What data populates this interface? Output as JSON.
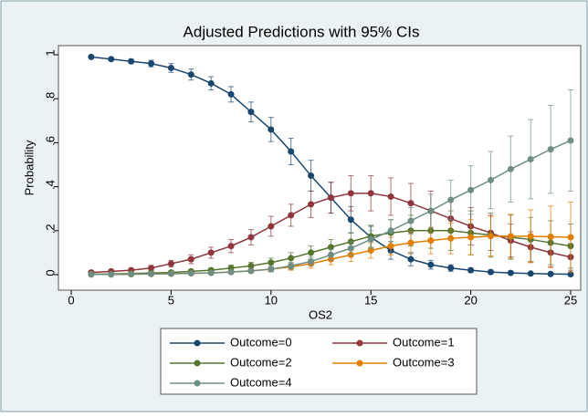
{
  "chart_data": {
    "type": "line",
    "title": "Adjusted Predictions with 95% CIs",
    "x_label": "OS2",
    "y_label": "Probability",
    "x": [
      1,
      2,
      3,
      4,
      5,
      6,
      7,
      8,
      9,
      10,
      11,
      12,
      13,
      14,
      15,
      16,
      17,
      18,
      19,
      20,
      21,
      22,
      23,
      24,
      25
    ],
    "xlim": [
      0,
      25
    ],
    "xticks": [
      0,
      5,
      10,
      15,
      20,
      25
    ],
    "ylim": [
      0,
      1
    ],
    "yticks": [
      0,
      {
        "value": 0.2,
        "label": ".2"
      },
      {
        "value": 0.4,
        "label": ".4"
      },
      {
        "value": 0.6,
        "label": ".6"
      },
      {
        "value": 0.8,
        "label": ".8"
      },
      1
    ],
    "grid": false,
    "series": [
      {
        "name": "Outcome=0",
        "color": "#1a476f",
        "values": [
          0.99,
          0.98,
          0.97,
          0.96,
          0.94,
          0.91,
          0.87,
          0.82,
          0.74,
          0.66,
          0.56,
          0.45,
          0.35,
          0.25,
          0.17,
          0.11,
          0.07,
          0.045,
          0.03,
          0.02,
          0.012,
          0.008,
          0.005,
          0.003,
          0.002
        ],
        "errors": [
          0.005,
          0.007,
          0.01,
          0.015,
          0.02,
          0.025,
          0.03,
          0.035,
          0.045,
          0.055,
          0.06,
          0.07,
          0.07,
          0.06,
          0.05,
          0.04,
          0.03,
          0.02,
          0.015,
          0.01,
          0.008,
          0.005,
          0.004,
          0.003,
          0.002
        ]
      },
      {
        "name": "Outcome=1",
        "color": "#90353b",
        "values": [
          0.01,
          0.015,
          0.02,
          0.03,
          0.05,
          0.07,
          0.1,
          0.13,
          0.17,
          0.22,
          0.27,
          0.32,
          0.35,
          0.37,
          0.37,
          0.355,
          0.325,
          0.29,
          0.255,
          0.22,
          0.19,
          0.155,
          0.125,
          0.1,
          0.08
        ],
        "errors": [
          0.005,
          0.007,
          0.01,
          0.012,
          0.015,
          0.02,
          0.025,
          0.03,
          0.035,
          0.045,
          0.05,
          0.06,
          0.07,
          0.08,
          0.08,
          0.085,
          0.09,
          0.09,
          0.09,
          0.085,
          0.08,
          0.075,
          0.07,
          0.065,
          0.06
        ]
      },
      {
        "name": "Outcome=2",
        "color": "#55752f",
        "values": [
          0.002,
          0.003,
          0.005,
          0.008,
          0.01,
          0.015,
          0.02,
          0.03,
          0.04,
          0.055,
          0.075,
          0.1,
          0.125,
          0.15,
          0.175,
          0.19,
          0.2,
          0.2,
          0.2,
          0.19,
          0.18,
          0.17,
          0.16,
          0.145,
          0.13
        ],
        "errors": [
          0.002,
          0.003,
          0.004,
          0.005,
          0.006,
          0.008,
          0.01,
          0.013,
          0.016,
          0.02,
          0.025,
          0.03,
          0.035,
          0.04,
          0.05,
          0.06,
          0.07,
          0.08,
          0.09,
          0.1,
          0.1,
          0.1,
          0.1,
          0.1,
          0.1
        ]
      },
      {
        "name": "Outcome=3",
        "color": "#e37e00",
        "values": [
          0.001,
          0.001,
          0.002,
          0.003,
          0.004,
          0.006,
          0.008,
          0.012,
          0.017,
          0.025,
          0.035,
          0.05,
          0.07,
          0.09,
          0.11,
          0.13,
          0.145,
          0.155,
          0.165,
          0.17,
          0.175,
          0.175,
          0.175,
          0.172,
          0.17
        ],
        "errors": [
          0.001,
          0.001,
          0.002,
          0.002,
          0.003,
          0.004,
          0.005,
          0.007,
          0.009,
          0.012,
          0.015,
          0.02,
          0.025,
          0.03,
          0.035,
          0.04,
          0.05,
          0.06,
          0.07,
          0.08,
          0.09,
          0.1,
          0.12,
          0.14,
          0.16
        ]
      },
      {
        "name": "Outcome=4",
        "color": "#6e8e84",
        "values": [
          0.001,
          0.001,
          0.002,
          0.003,
          0.004,
          0.006,
          0.008,
          0.012,
          0.017,
          0.025,
          0.04,
          0.06,
          0.09,
          0.12,
          0.16,
          0.2,
          0.245,
          0.29,
          0.34,
          0.385,
          0.43,
          0.48,
          0.525,
          0.57,
          0.61
        ],
        "errors": [
          0.001,
          0.001,
          0.002,
          0.002,
          0.003,
          0.004,
          0.005,
          0.007,
          0.009,
          0.012,
          0.016,
          0.02,
          0.025,
          0.03,
          0.04,
          0.05,
          0.06,
          0.075,
          0.09,
          0.11,
          0.13,
          0.15,
          0.18,
          0.2,
          0.23
        ]
      }
    ]
  }
}
